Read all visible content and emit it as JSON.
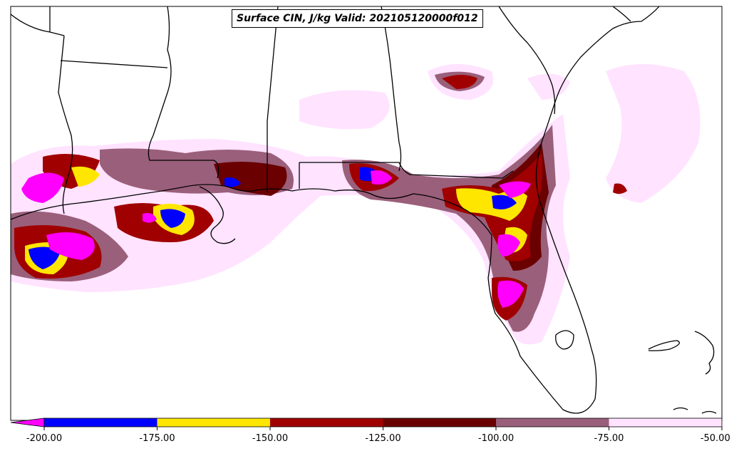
{
  "title": "Surface CIN, J/kg Valid: 202105120000f012",
  "colorbar": {
    "levels": [
      "-200.00",
      "-175.00",
      "-150.00",
      "-125.00",
      "-100.00",
      "-75.00",
      "-50.00"
    ],
    "colors": {
      "below_min": "#ff00ff",
      "c_-200_-175": "#0000ff",
      "c_-175_-150": "#ffe600",
      "c_-150_-125": "#a00000",
      "c_-125_-100": "#6a0000",
      "c_-100_-75": "#9a5f7a",
      "c_-75_-50": "#ffe3ff"
    }
  }
}
